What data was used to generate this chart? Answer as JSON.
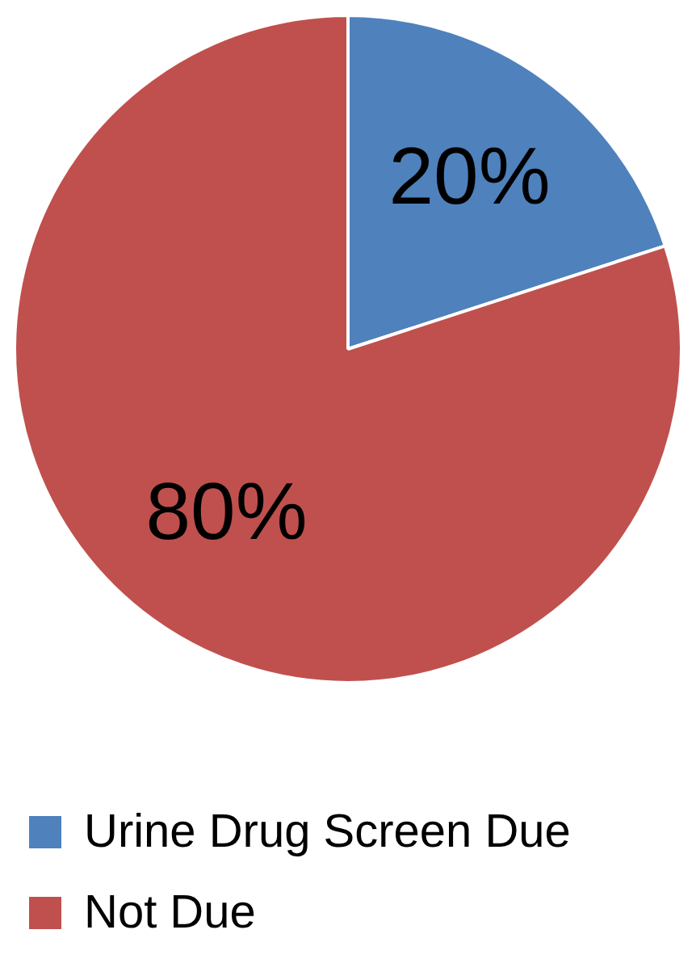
{
  "chart_data": {
    "type": "pie",
    "categories": [
      "Urine Drug Screen Due",
      "Not Due"
    ],
    "values": [
      20,
      80
    ],
    "colors": [
      "#4f81bd",
      "#c0504d"
    ],
    "value_labels": [
      "20%",
      "80%"
    ],
    "legend": "bottom"
  }
}
